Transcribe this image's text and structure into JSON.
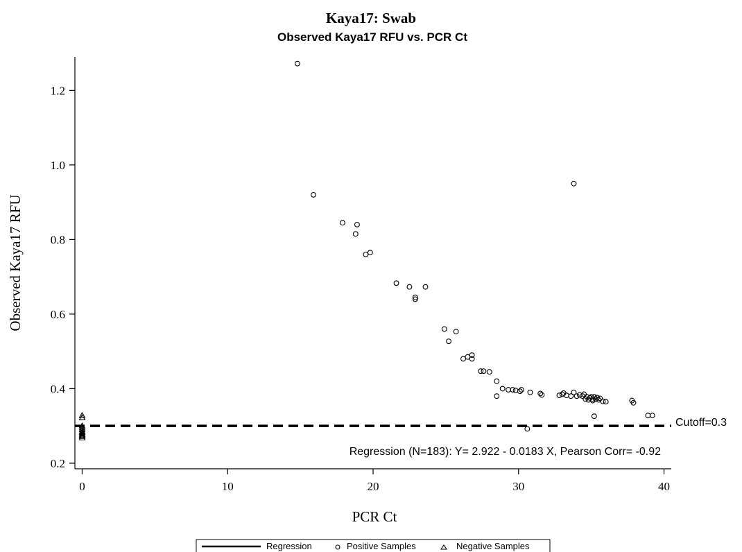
{
  "chart_data": {
    "type": "scatter",
    "title": "Kaya17: Swab",
    "subtitle": "Observed Kaya17 RFU vs. PCR Ct",
    "xlabel": "PCR Ct",
    "ylabel": "Observed Kaya17 RFU",
    "xlim": [
      -0.5,
      40.5
    ],
    "ylim": [
      0.185,
      1.29
    ],
    "xticks": [
      0,
      10,
      20,
      30,
      40
    ],
    "ytick_labels": [
      "0.2",
      "0.4",
      "0.6",
      "0.8",
      "1.0",
      "1.2"
    ],
    "grid": false,
    "regression": {
      "intercept": 2.922,
      "slope": -0.0183,
      "x_range": [
        14.8,
        39.2
      ],
      "line_color": "#000000"
    },
    "cutoff": {
      "value": 0.3,
      "label": "Cutoff=0.3"
    },
    "annotation": "Regression (N=183): Y= 2.922 - 0.0183 X, Pearson Corr= -0.92",
    "legend": {
      "placement": "bottom",
      "entries": [
        {
          "label": "Regression",
          "marker": "line"
        },
        {
          "label": "Positive Samples",
          "marker": "circle"
        },
        {
          "label": "Negative Samples",
          "marker": "triangle"
        }
      ]
    },
    "series": [
      {
        "name": "Positive Samples",
        "marker": "circle",
        "points": [
          [
            14.8,
            1.272
          ],
          [
            15.9,
            0.92
          ],
          [
            17.9,
            0.845
          ],
          [
            18.8,
            0.815
          ],
          [
            18.9,
            0.84
          ],
          [
            19.5,
            0.76
          ],
          [
            19.8,
            0.765
          ],
          [
            21.6,
            0.683
          ],
          [
            22.5,
            0.673
          ],
          [
            22.9,
            0.64
          ],
          [
            22.9,
            0.645
          ],
          [
            23.6,
            0.673
          ],
          [
            24.9,
            0.56
          ],
          [
            25.2,
            0.527
          ],
          [
            25.7,
            0.553
          ],
          [
            26.2,
            0.48
          ],
          [
            26.5,
            0.485
          ],
          [
            26.8,
            0.49
          ],
          [
            26.8,
            0.48
          ],
          [
            27.4,
            0.447
          ],
          [
            27.6,
            0.447
          ],
          [
            28.0,
            0.445
          ],
          [
            28.5,
            0.42
          ],
          [
            28.5,
            0.38
          ],
          [
            28.9,
            0.4
          ],
          [
            29.3,
            0.397
          ],
          [
            29.6,
            0.397
          ],
          [
            29.8,
            0.395
          ],
          [
            30.1,
            0.393
          ],
          [
            30.2,
            0.397
          ],
          [
            30.6,
            0.292
          ],
          [
            30.8,
            0.39
          ],
          [
            31.5,
            0.387
          ],
          [
            31.6,
            0.383
          ],
          [
            32.8,
            0.382
          ],
          [
            33.0,
            0.385
          ],
          [
            33.1,
            0.388
          ],
          [
            33.3,
            0.382
          ],
          [
            33.6,
            0.38
          ],
          [
            33.8,
            0.95
          ],
          [
            33.8,
            0.39
          ],
          [
            34.0,
            0.38
          ],
          [
            34.2,
            0.383
          ],
          [
            34.4,
            0.38
          ],
          [
            34.5,
            0.385
          ],
          [
            34.6,
            0.372
          ],
          [
            34.7,
            0.378
          ],
          [
            34.8,
            0.37
          ],
          [
            34.9,
            0.375
          ],
          [
            35.0,
            0.378
          ],
          [
            35.1,
            0.372
          ],
          [
            35.1,
            0.368
          ],
          [
            35.2,
            0.326
          ],
          [
            35.2,
            0.378
          ],
          [
            35.3,
            0.372
          ],
          [
            35.4,
            0.376
          ],
          [
            35.5,
            0.37
          ],
          [
            35.6,
            0.374
          ],
          [
            35.8,
            0.366
          ],
          [
            36.0,
            0.365
          ],
          [
            37.8,
            0.368
          ],
          [
            37.9,
            0.362
          ],
          [
            38.9,
            0.328
          ],
          [
            39.2,
            0.328
          ]
        ]
      },
      {
        "name": "Negative Samples",
        "marker": "triangle",
        "points": [
          [
            0,
            0.328
          ],
          [
            0,
            0.322
          ],
          [
            0,
            0.3
          ],
          [
            0,
            0.295
          ],
          [
            0,
            0.29
          ],
          [
            0,
            0.285
          ],
          [
            0,
            0.282
          ],
          [
            0,
            0.278
          ],
          [
            0,
            0.275
          ],
          [
            0,
            0.272
          ],
          [
            0,
            0.268
          ]
        ]
      }
    ]
  }
}
